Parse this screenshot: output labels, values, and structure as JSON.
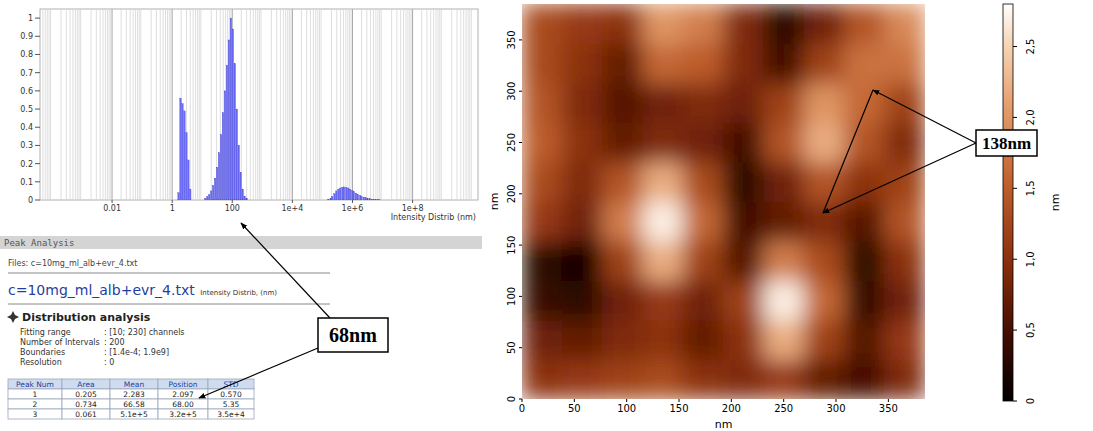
{
  "chart_data": [
    {
      "type": "bar",
      "x_label": "Intensity Distrib (nm)",
      "log": "x",
      "grid": true,
      "color": "#6a6af2",
      "xlim": [
        4e-05,
        15000000000.0
      ],
      "ylim": [
        0,
        1.05
      ],
      "xticks": [
        0.01,
        1,
        100,
        {
          "value": 10000,
          "label": "1e+4"
        },
        {
          "value": 1000000,
          "label": "1e+6"
        },
        {
          "value": 100000000,
          "label": "1e+8"
        }
      ],
      "yticks": [
        0,
        0.1,
        0.2,
        0.3,
        0.4,
        0.5,
        0.6,
        0.7,
        0.8,
        0.9,
        1
      ],
      "x": [
        1.63,
        1.89,
        2.2,
        2.56,
        2.98,
        3.46,
        4.0,
        12.6,
        14.7,
        17.0,
        19.8,
        23.0,
        26.8,
        31.2,
        36.2,
        42.2,
        49.0,
        57.0,
        66.4,
        77.1,
        89.7,
        104,
        121,
        141,
        164,
        191,
        222,
        258,
        301,
        160000,
        190000,
        210000,
        250000,
        290000,
        340000,
        390000,
        460000,
        520000,
        620000,
        720000,
        830000,
        980000,
        1100000,
        1300000,
        1500000,
        1800000,
        2000000,
        2400000,
        2800000,
        3200000,
        3800000,
        4400000,
        5100000,
        5900000,
        6900000,
        7900000
      ],
      "values": [
        0.04,
        0.56,
        0.53,
        0.49,
        0.37,
        0.22,
        0.06,
        0.01,
        0.02,
        0.03,
        0.05,
        0.08,
        0.12,
        0.18,
        0.26,
        0.36,
        0.48,
        0.6,
        0.74,
        0.88,
        1.0,
        0.94,
        0.75,
        0.5,
        0.3,
        0.15,
        0.06,
        0.02,
        0.01,
        0.005,
        0.01,
        0.02,
        0.035,
        0.05,
        0.06,
        0.066,
        0.07,
        0.072,
        0.07,
        0.066,
        0.06,
        0.052,
        0.045,
        0.038,
        0.031,
        0.025,
        0.02,
        0.016,
        0.012,
        0.009,
        0.007,
        0.005,
        0.004,
        0.003,
        0.002,
        0.001
      ],
      "annotations": [
        "68nm"
      ]
    },
    {
      "type": "heatmap",
      "x_label": "nm",
      "y_label": "nm",
      "colorbar_label": "nm",
      "xlim": [
        0,
        385
      ],
      "ylim": [
        0,
        385
      ],
      "xticks": [
        0,
        50,
        100,
        150,
        200,
        250,
        300,
        350
      ],
      "yticks": [
        0,
        50,
        100,
        150,
        200,
        250,
        300,
        350
      ],
      "x": [
        19.25,
        57.75,
        96.25,
        134.75,
        173.25,
        211.75,
        250.25,
        288.75,
        327.25,
        365.75
      ],
      "y": [
        19.25,
        57.75,
        96.25,
        134.75,
        173.25,
        211.75,
        250.25,
        288.75,
        327.25,
        365.75
      ],
      "z": [
        [
          1.0,
          1.1,
          1.2,
          1.3,
          1.0,
          0.9,
          1.1,
          0.7,
          0.5,
          0.9
        ],
        [
          0.8,
          0.7,
          0.9,
          1.0,
          0.7,
          1.0,
          2.2,
          1.2,
          0.6,
          1.1
        ],
        [
          0.4,
          0.3,
          0.8,
          1.1,
          0.8,
          1.2,
          2.7,
          1.6,
          0.4,
          0.8
        ],
        [
          0.3,
          0.1,
          1.2,
          2.2,
          1.2,
          0.6,
          1.8,
          1.3,
          0.3,
          1.0
        ],
        [
          1.1,
          0.8,
          1.8,
          2.7,
          1.6,
          0.5,
          0.7,
          0.9,
          0.6,
          1.4
        ],
        [
          1.3,
          0.9,
          1.4,
          2.2,
          1.3,
          0.3,
          0.8,
          1.4,
          1.0,
          1.2
        ],
        [
          1.5,
          1.0,
          0.7,
          0.9,
          0.8,
          0.5,
          1.4,
          2.2,
          1.4,
          0.9
        ],
        [
          1.4,
          0.9,
          0.6,
          0.8,
          0.9,
          0.8,
          1.2,
          2.0,
          1.6,
          1.2
        ],
        [
          1.3,
          1.0,
          0.7,
          1.6,
          1.5,
          0.9,
          0.5,
          1.2,
          1.7,
          1.7
        ],
        [
          1.3,
          1.1,
          1.0,
          2.0,
          1.8,
          0.9,
          0.3,
          0.8,
          1.4,
          1.9
        ]
      ],
      "color_range": [
        0,
        2.8
      ],
      "color_ticks": [
        0,
        {
          "value": 0.5,
          "label": "0,5"
        },
        {
          "value": 1,
          "label": "1,0"
        },
        {
          "value": 1.5,
          "label": "1,5"
        },
        {
          "value": 2,
          "label": "2,0"
        },
        {
          "value": 2.5,
          "label": "2,5"
        }
      ],
      "annotations": [
        "138nm"
      ]
    }
  ],
  "peak_analysis": {
    "header": "Peak Analysis",
    "files": "Files: c=10mg_ml_alb+evr_4.txt",
    "file_title": "c=10mg_ml_alb+evr_4.txt",
    "file_subtitle": "Intensity Distrib, (nm)",
    "section": "Distribution analysis",
    "fields": [
      {
        "label": "Fitting range",
        "value": ": [10; 230] channels"
      },
      {
        "label": "Number of Intervals",
        "value": ": 200"
      },
      {
        "label": "Boundaries",
        "value": ": [1.4e-4; 1.9e9]"
      },
      {
        "label": "Resolution",
        "value": ": 0"
      }
    ],
    "table": {
      "columns": [
        "Peak Num",
        "Area",
        "Mean",
        "Position",
        "STD"
      ],
      "rows": [
        [
          "1",
          "0.205",
          "2.283",
          "2.097",
          "0.570"
        ],
        [
          "2",
          "0.734",
          "66.58",
          "68.00",
          "5.35"
        ],
        [
          "3",
          "0.061",
          "5.1e+5",
          "3.2e+5",
          "3.5e+4"
        ]
      ]
    }
  }
}
